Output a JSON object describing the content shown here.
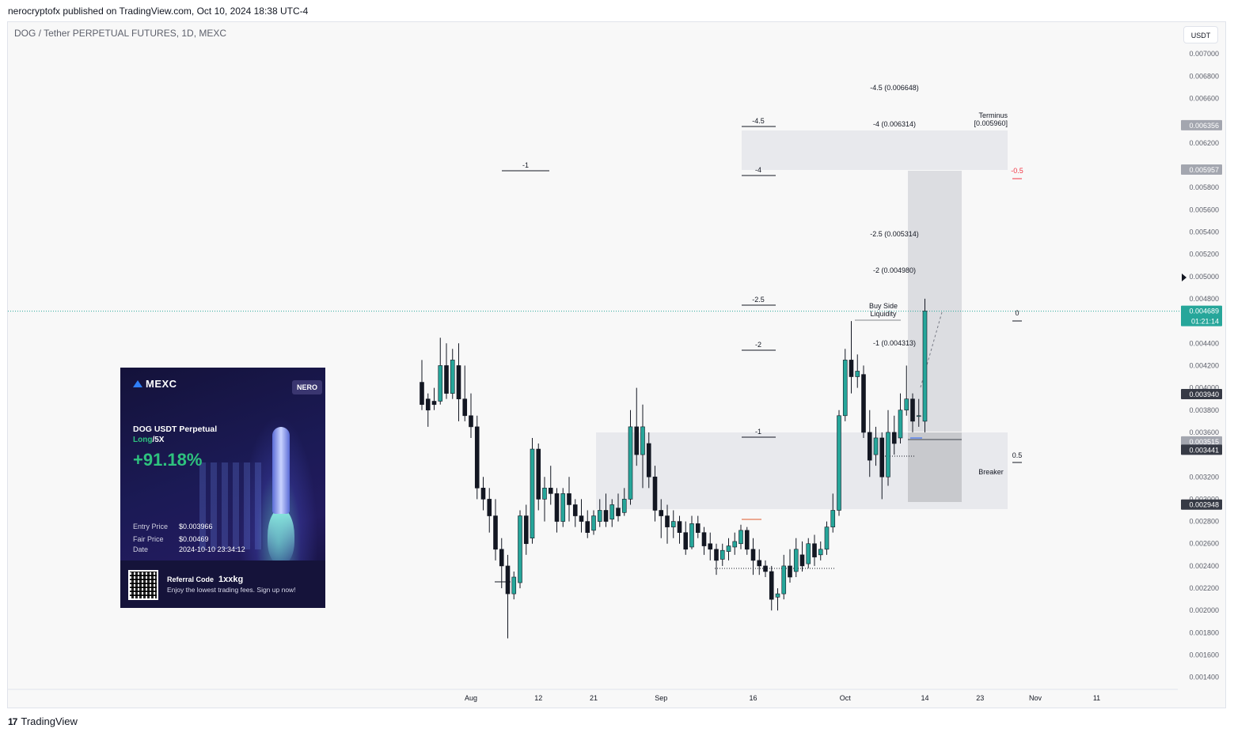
{
  "publisher_line": "nerocryptofx published on TradingView.com, Oct 10, 2024 18:38 UTC-4",
  "symbol_title": "DOG / Tether PERPETUAL FUTURES, 1D, MEXC",
  "currency_button": "USDT",
  "footer_brand": "TradingView",
  "footer_logo_icon": "tradingview-logo-icon",
  "colors": {
    "up": "#26a69a",
    "down": "#131722",
    "zone": "#e3e5ea",
    "zone_dark": "#c8c9cd",
    "price_line": "#26a69a",
    "red_label": "#f23645"
  },
  "chart_data": {
    "type": "candlestick",
    "ylim": [
      0.00132,
      0.00715
    ],
    "y_ticks": [
      "0.007000",
      "0.006800",
      "0.006600",
      "0.006200",
      "0.005800",
      "0.005600",
      "0.005400",
      "0.005200",
      "0.005000",
      "0.004800",
      "0.004400",
      "0.004200",
      "0.004000",
      "0.003800",
      "0.003600",
      "0.003200",
      "0.003000",
      "0.002800",
      "0.002600",
      "0.002400",
      "0.002200",
      "0.002000",
      "0.001800",
      "0.001600",
      "0.001400"
    ],
    "x_axis_labels": [
      {
        "label": "Aug",
        "day": 8
      },
      {
        "label": "12",
        "day": 19
      },
      {
        "label": "21",
        "day": 28
      },
      {
        "label": "Sep",
        "day": 39
      },
      {
        "label": "16",
        "day": 54
      },
      {
        "label": "Oct",
        "day": 69
      },
      {
        "label": "14",
        "day": 82
      },
      {
        "label": "23",
        "day": 91
      },
      {
        "label": "Nov",
        "day": 100
      },
      {
        "label": "11",
        "day": 110
      }
    ],
    "candles": [
      [
        0.00405,
        0.00425,
        0.00385,
        0.0038
      ],
      [
        0.0039,
        0.00395,
        0.0038,
        0.00365
      ],
      [
        0.00388,
        0.004,
        0.00385,
        0.0038
      ],
      [
        0.00388,
        0.00445,
        0.0042,
        0.00385
      ],
      [
        0.0042,
        0.0044,
        0.00395,
        0.0039
      ],
      [
        0.00395,
        0.00435,
        0.00425,
        0.0039
      ],
      [
        0.0042,
        0.0044,
        0.0039,
        0.0037
      ],
      [
        0.0039,
        0.0042,
        0.00375,
        0.0037
      ],
      [
        0.00375,
        0.00395,
        0.00365,
        0.00355
      ],
      [
        0.00365,
        0.00375,
        0.0031,
        0.003
      ],
      [
        0.0031,
        0.0032,
        0.003,
        0.0029
      ],
      [
        0.003,
        0.0031,
        0.00285,
        0.0027
      ],
      [
        0.00285,
        0.003,
        0.00255,
        0.00245
      ],
      [
        0.00255,
        0.00265,
        0.0024,
        0.0022
      ],
      [
        0.0024,
        0.0025,
        0.00215,
        0.00175
      ],
      [
        0.00215,
        0.00235,
        0.0023,
        0.0021
      ],
      [
        0.00225,
        0.0029,
        0.00285,
        0.0022
      ],
      [
        0.00285,
        0.00295,
        0.0026,
        0.0025
      ],
      [
        0.00265,
        0.00355,
        0.00345,
        0.0026
      ],
      [
        0.00345,
        0.0035,
        0.003,
        0.0029
      ],
      [
        0.003,
        0.0032,
        0.0031,
        0.0028
      ],
      [
        0.0031,
        0.0033,
        0.00305,
        0.00295
      ],
      [
        0.00305,
        0.0031,
        0.0028,
        0.0027
      ],
      [
        0.0028,
        0.0031,
        0.00305,
        0.00275
      ],
      [
        0.00305,
        0.0032,
        0.00295,
        0.0028
      ],
      [
        0.00295,
        0.003,
        0.00285,
        0.00275
      ],
      [
        0.00285,
        0.003,
        0.0028,
        0.0027
      ],
      [
        0.0028,
        0.0029,
        0.0027,
        0.00265
      ],
      [
        0.00272,
        0.0029,
        0.00285,
        0.00268
      ],
      [
        0.0028,
        0.003,
        0.0029,
        0.00275
      ],
      [
        0.0029,
        0.00305,
        0.0028,
        0.00275
      ],
      [
        0.00282,
        0.003,
        0.00295,
        0.00275
      ],
      [
        0.00292,
        0.00305,
        0.00285,
        0.0028
      ],
      [
        0.00288,
        0.0031,
        0.003,
        0.00285
      ],
      [
        0.003,
        0.0038,
        0.00365,
        0.00295
      ],
      [
        0.00365,
        0.004,
        0.0034,
        0.0033
      ],
      [
        0.0034,
        0.00385,
        0.00365,
        0.0031
      ],
      [
        0.0035,
        0.0036,
        0.0032,
        0.0031
      ],
      [
        0.0032,
        0.0033,
        0.0029,
        0.0028
      ],
      [
        0.0029,
        0.003,
        0.00285,
        0.00265
      ],
      [
        0.00285,
        0.00295,
        0.00275,
        0.0026
      ],
      [
        0.00275,
        0.0029,
        0.0028,
        0.00265
      ],
      [
        0.0028,
        0.00285,
        0.0027,
        0.0026
      ],
      [
        0.0027,
        0.0028,
        0.00255,
        0.0025
      ],
      [
        0.00257,
        0.00285,
        0.00278,
        0.00255
      ],
      [
        0.00278,
        0.00285,
        0.0027,
        0.00265
      ],
      [
        0.0027,
        0.00275,
        0.00258,
        0.0025
      ],
      [
        0.0026,
        0.0027,
        0.00255,
        0.00245
      ],
      [
        0.00255,
        0.0026,
        0.00245,
        0.00232
      ],
      [
        0.00246,
        0.0026,
        0.00254,
        0.0024
      ],
      [
        0.00253,
        0.00265,
        0.00258,
        0.00245
      ],
      [
        0.00257,
        0.0027,
        0.00262,
        0.0025
      ],
      [
        0.0026,
        0.00277,
        0.00272,
        0.00255
      ],
      [
        0.00272,
        0.00275,
        0.00255,
        0.0025
      ],
      [
        0.00255,
        0.00265,
        0.00245,
        0.00232
      ],
      [
        0.00245,
        0.00255,
        0.0024,
        0.00232
      ],
      [
        0.0024,
        0.00245,
        0.00235,
        0.0023
      ],
      [
        0.00235,
        0.0024,
        0.0021,
        0.002
      ],
      [
        0.00212,
        0.0022,
        0.00215,
        0.002
      ],
      [
        0.00215,
        0.0025,
        0.0024,
        0.0021
      ],
      [
        0.0024,
        0.00255,
        0.0023,
        0.00225
      ],
      [
        0.00235,
        0.00265,
        0.00255,
        0.0023
      ],
      [
        0.0025,
        0.00262,
        0.0024,
        0.00235
      ],
      [
        0.00242,
        0.00265,
        0.0026,
        0.00238
      ],
      [
        0.0026,
        0.00268,
        0.00248,
        0.0024
      ],
      [
        0.0025,
        0.00262,
        0.00255,
        0.00245
      ],
      [
        0.00255,
        0.0028,
        0.00275,
        0.0025
      ],
      [
        0.00275,
        0.00305,
        0.0029,
        0.0027
      ],
      [
        0.0029,
        0.0038,
        0.00375,
        0.00285
      ],
      [
        0.00375,
        0.00435,
        0.00425,
        0.0037
      ],
      [
        0.00425,
        0.0046,
        0.0041,
        0.00395
      ],
      [
        0.0041,
        0.0043,
        0.00415,
        0.004
      ],
      [
        0.00412,
        0.0042,
        0.0036,
        0.00355
      ],
      [
        0.0036,
        0.0038,
        0.00335,
        0.0032
      ],
      [
        0.0034,
        0.00365,
        0.00355,
        0.0033
      ],
      [
        0.00355,
        0.0036,
        0.0032,
        0.003
      ],
      [
        0.0032,
        0.0038,
        0.0036,
        0.00312
      ],
      [
        0.0036,
        0.00375,
        0.0035,
        0.0034
      ],
      [
        0.00355,
        0.00395,
        0.0038,
        0.0035
      ],
      [
        0.0038,
        0.0042,
        0.0039,
        0.00375
      ],
      [
        0.0039,
        0.00395,
        0.0037,
        0.0036
      ],
      [
        0.00375,
        0.0039,
        0.00375,
        0.00365
      ],
      [
        0.0037,
        0.0048,
        0.00469,
        0.0036
      ]
    ],
    "price_badges": [
      {
        "value": 0.006356,
        "text": "0.006356",
        "style": "grey"
      },
      {
        "value": 0.005957,
        "text": "0.005957",
        "style": "grey"
      },
      {
        "value": 0.004689,
        "text": "0.004689",
        "sub": "01:21:14",
        "style": "green"
      },
      {
        "value": 0.00394,
        "text": "0.003940",
        "style": "dark"
      },
      {
        "value": 0.003515,
        "text": "0.003515",
        "style": "grey"
      },
      {
        "value": 0.003441,
        "text": "0.003441",
        "style": "dark"
      },
      {
        "value": 0.002948,
        "text": "0.002948",
        "style": "dark"
      }
    ],
    "annotations": {
      "fib_right": [
        {
          "text": "-4.5 (0.006648)"
        },
        {
          "text": "-4 (0.006314)"
        },
        {
          "text": "-2.5 (0.005314)"
        },
        {
          "text": "-2 (0.004980)"
        },
        {
          "text": "-1 (0.004313)"
        }
      ],
      "fib_left_labels": [
        "-4.5",
        "-4",
        "-2.5",
        "-2",
        "-1"
      ],
      "fib_far_left": "-1",
      "terminus_title": "Terminus",
      "terminus_value": "[0.005960]",
      "buy_side_1": "Buy Side",
      "buy_side_2": "Liquidity",
      "red_label": "-0.5",
      "zero_label": "0",
      "half_label": "0.5",
      "breaker": "Breaker"
    }
  },
  "card": {
    "brand": "MEXC",
    "badge": "NERO",
    "pair": "DOG USDT Perpetual",
    "side_long": "Long",
    "side_leverage": "/5X",
    "pnl": "+91.18%",
    "entry_label": "Entry Price",
    "entry_value": "$0.003966",
    "fair_label": "Fair Price",
    "fair_value": "$0.00469",
    "date_label": "Date",
    "date_value": "2024-10-10 23:34:12",
    "ref_label": "Referral Code",
    "ref_code": "1xxkg",
    "ref_sub": "Enjoy the lowest trading fees. Sign up now!"
  }
}
